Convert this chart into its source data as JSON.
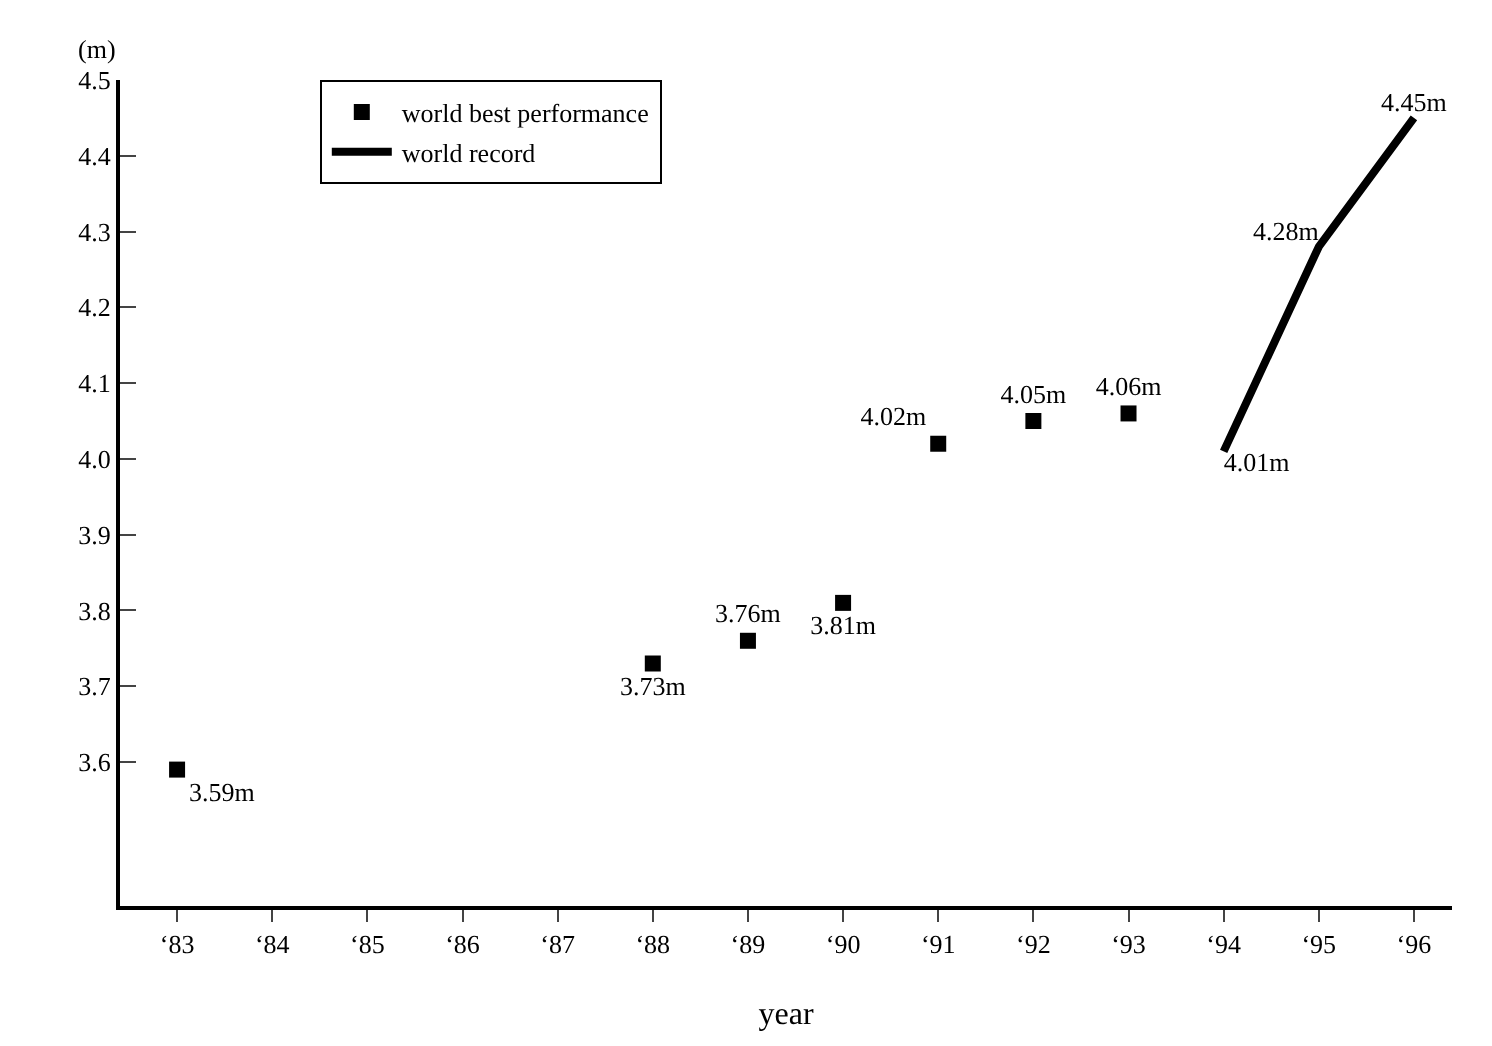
{
  "chart_data": {
    "type": "scatter",
    "xlabel": "year",
    "ylabel": "(m)",
    "categories": [
      "‘83",
      "‘84",
      "‘85",
      "‘86",
      "‘87",
      "‘88",
      "‘89",
      "‘90",
      "‘91",
      "‘92",
      "‘93",
      "‘94",
      "‘95",
      "‘96"
    ],
    "ylim": [
      3.41,
      4.5
    ],
    "yticks": [
      3.6,
      3.7,
      3.8,
      3.9,
      {
        "value": 4.0,
        "label": "4.0"
      },
      4.1,
      4.2,
      4.3,
      4.4,
      4.5
    ],
    "legend": "top left",
    "grid": false,
    "series": [
      {
        "name": "world best performance",
        "marker": "square",
        "color": "#000000",
        "values": [
          3.59,
          null,
          null,
          null,
          null,
          3.73,
          3.76,
          3.81,
          4.02,
          4.05,
          4.06,
          null,
          null,
          null
        ],
        "value_labels": [
          "3.59m",
          null,
          null,
          null,
          null,
          "3.73m",
          "3.76m",
          "3.81m",
          "4.02m",
          "4.05m",
          "4.06m",
          null,
          null,
          null
        ]
      },
      {
        "name": "world record",
        "type": "line",
        "marker": "none",
        "line_style": "solid",
        "color": "#000000",
        "values": [
          null,
          null,
          null,
          null,
          null,
          null,
          null,
          null,
          null,
          null,
          null,
          4.01,
          4.28,
          4.45
        ],
        "value_labels": [
          null,
          null,
          null,
          null,
          null,
          null,
          null,
          null,
          null,
          null,
          null,
          "4.01m",
          "4.28m",
          "4.45m"
        ]
      }
    ]
  }
}
